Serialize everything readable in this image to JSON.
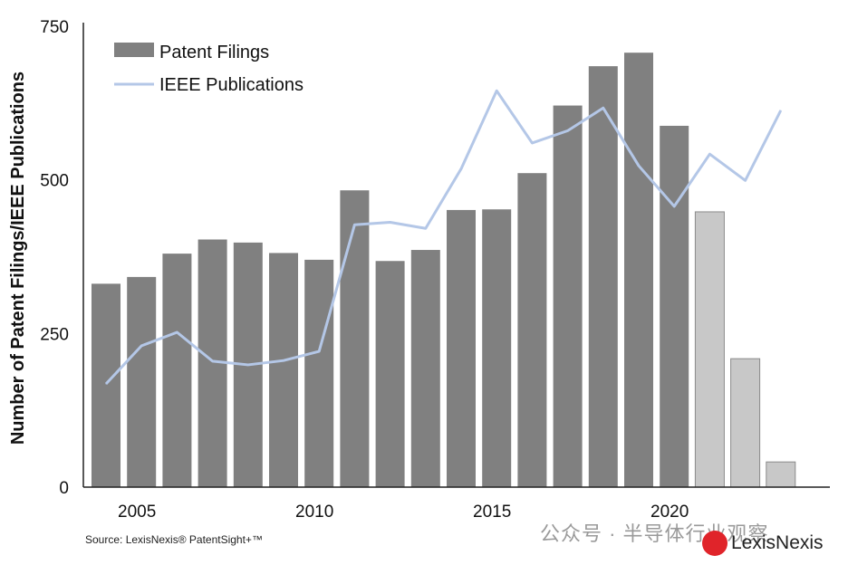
{
  "chart_data": {
    "type": "bar+line",
    "categories": [
      2004,
      2005,
      2006,
      2007,
      2008,
      2009,
      2010,
      2011,
      2012,
      2013,
      2014,
      2015,
      2016,
      2017,
      2018,
      2019,
      2020,
      2021,
      2022,
      2023
    ],
    "series": [
      {
        "name": "Patent Filings",
        "type": "bar",
        "color": "#808080",
        "incomplete_color": "#c8c8c8",
        "values": [
          331,
          342,
          380,
          403,
          398,
          381,
          370,
          483,
          368,
          386,
          451,
          452,
          511,
          621,
          685,
          707,
          588,
          448,
          209,
          41
        ],
        "incomplete_from": 2021
      },
      {
        "name": "IEEE Publications",
        "type": "line",
        "color": "#b4c7e7",
        "values": [
          168,
          230,
          252,
          205,
          199,
          206,
          221,
          427,
          431,
          421,
          518,
          645,
          560,
          580,
          617,
          523,
          457,
          542,
          499,
          613
        ]
      }
    ],
    "ylabel": "Number of Patent Filings/IEEE Publications",
    "xlabel": "",
    "ylim": [
      0,
      750
    ],
    "yticks": [
      0,
      250,
      500,
      750
    ],
    "xticks": [
      2005,
      2010,
      2015,
      2020
    ],
    "grid": false,
    "legend": "top-left"
  },
  "source": "Source: LexisNexis® PatentSight+™",
  "watermark": "公众号 · 半导体行业观察",
  "logo": "LexisNexis"
}
